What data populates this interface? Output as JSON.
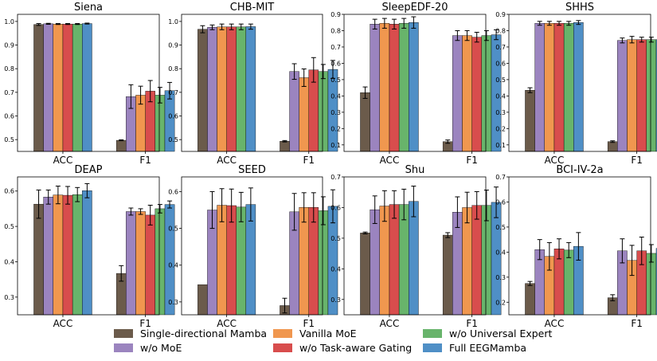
{
  "figure": {
    "legend": [
      {
        "name": "Single-directional Mamba",
        "color": "#6b5b4b"
      },
      {
        "name": "w/o MoE",
        "color": "#9b84bf"
      },
      {
        "name": "Vanilla MoE",
        "color": "#f0974f"
      },
      {
        "name": "w/o Task-aware Gating",
        "color": "#d84d4d"
      },
      {
        "name": "w/o Universal Expert",
        "color": "#68b46b"
      },
      {
        "name": "Full EEGMamba",
        "color": "#4f8fc6"
      }
    ]
  },
  "chart_data": [
    {
      "type": "bar",
      "title": "Siena",
      "categories": [
        "ACC",
        "F1"
      ],
      "ylim": [
        0.45,
        1.03
      ],
      "yticks": [
        "0.5",
        "0.6",
        "0.7",
        "0.8",
        "0.9",
        "1.0"
      ],
      "series": [
        {
          "name": "Single-directional Mamba",
          "values": [
            0.987,
            0.497
          ],
          "errors": [
            0.004,
            0.002
          ]
        },
        {
          "name": "w/o MoE",
          "values": [
            0.99,
            0.682
          ],
          "errors": [
            0.002,
            0.05
          ]
        },
        {
          "name": "Vanilla MoE",
          "values": [
            0.989,
            0.688
          ],
          "errors": [
            0.002,
            0.038
          ]
        },
        {
          "name": "w/o Task-aware Gating",
          "values": [
            0.989,
            0.705
          ],
          "errors": [
            0.002,
            0.045
          ]
        },
        {
          "name": "w/o Universal Expert",
          "values": [
            0.989,
            0.688
          ],
          "errors": [
            0.002,
            0.033
          ]
        },
        {
          "name": "Full EEGMamba",
          "values": [
            0.991,
            0.707
          ],
          "errors": [
            0.002,
            0.035
          ]
        }
      ]
    },
    {
      "type": "bar",
      "title": "CHB-MIT",
      "categories": [
        "ACC",
        "F1"
      ],
      "ylim": [
        0.45,
        1.03
      ],
      "yticks": [
        "0.5",
        "0.6",
        "0.7",
        "0.8",
        "0.9",
        "1.0"
      ],
      "series": [
        {
          "name": "Single-directional Mamba",
          "values": [
            0.967,
            0.493
          ],
          "errors": [
            0.015,
            0.003
          ]
        },
        {
          "name": "w/o MoE",
          "values": [
            0.975,
            0.788
          ],
          "errors": [
            0.01,
            0.033
          ]
        },
        {
          "name": "Vanilla MoE",
          "values": [
            0.977,
            0.762
          ],
          "errors": [
            0.012,
            0.037
          ]
        },
        {
          "name": "w/o Task-aware Gating",
          "values": [
            0.977,
            0.795
          ],
          "errors": [
            0.012,
            0.052
          ]
        },
        {
          "name": "w/o Universal Expert",
          "values": [
            0.977,
            0.788
          ],
          "errors": [
            0.012,
            0.03
          ]
        },
        {
          "name": "Full EEGMamba",
          "values": [
            0.978,
            0.797
          ],
          "errors": [
            0.011,
            0.038
          ]
        }
      ]
    },
    {
      "type": "bar",
      "title": "SleepEDF-20",
      "categories": [
        "ACC",
        "F1"
      ],
      "ylim": [
        0.06,
        0.9
      ],
      "yticks": [
        "0.1",
        "0.2",
        "0.3",
        "0.4",
        "0.5",
        "0.6",
        "0.7",
        "0.8",
        "0.9"
      ],
      "series": [
        {
          "name": "Single-directional Mamba",
          "values": [
            0.42,
            0.12
          ],
          "errors": [
            0.035,
            0.01
          ]
        },
        {
          "name": "w/o MoE",
          "values": [
            0.84,
            0.77
          ],
          "errors": [
            0.03,
            0.03
          ]
        },
        {
          "name": "Vanilla MoE",
          "values": [
            0.845,
            0.77
          ],
          "errors": [
            0.03,
            0.03
          ]
        },
        {
          "name": "w/o Task-aware Gating",
          "values": [
            0.84,
            0.76
          ],
          "errors": [
            0.03,
            0.03
          ]
        },
        {
          "name": "w/o Universal Expert",
          "values": [
            0.845,
            0.77
          ],
          "errors": [
            0.03,
            0.03
          ]
        },
        {
          "name": "Full EEGMamba",
          "values": [
            0.85,
            0.775
          ],
          "errors": [
            0.035,
            0.03
          ]
        }
      ]
    },
    {
      "type": "bar",
      "title": "SHHS",
      "categories": [
        "ACC",
        "F1"
      ],
      "ylim": [
        0.06,
        0.9
      ],
      "yticks": [
        "0.1",
        "0.2",
        "0.3",
        "0.4",
        "0.5",
        "0.6",
        "0.7",
        "0.8",
        "0.9"
      ],
      "series": [
        {
          "name": "Single-directional Mamba",
          "values": [
            0.435,
            0.12
          ],
          "errors": [
            0.015,
            0.005
          ]
        },
        {
          "name": "w/o MoE",
          "values": [
            0.845,
            0.74
          ],
          "errors": [
            0.012,
            0.015
          ]
        },
        {
          "name": "Vanilla MoE",
          "values": [
            0.845,
            0.745
          ],
          "errors": [
            0.012,
            0.02
          ]
        },
        {
          "name": "w/o Task-aware Gating",
          "values": [
            0.845,
            0.745
          ],
          "errors": [
            0.012,
            0.015
          ]
        },
        {
          "name": "w/o Universal Expert",
          "values": [
            0.845,
            0.745
          ],
          "errors": [
            0.012,
            0.015
          ]
        },
        {
          "name": "Full EEGMamba",
          "values": [
            0.85,
            0.745
          ],
          "errors": [
            0.012,
            0.018
          ]
        }
      ]
    },
    {
      "type": "bar",
      "title": "DEAP",
      "categories": [
        "ACC",
        "F1"
      ],
      "ylim": [
        0.25,
        0.64
      ],
      "yticks": [
        "0.3",
        "0.4",
        "0.5",
        "0.6"
      ],
      "series": [
        {
          "name": "Single-directional Mamba",
          "values": [
            0.563,
            0.367
          ],
          "errors": [
            0.04,
            0.022
          ]
        },
        {
          "name": "w/o MoE",
          "values": [
            0.583,
            0.542
          ],
          "errors": [
            0.02,
            0.01
          ]
        },
        {
          "name": "Vanilla MoE",
          "values": [
            0.589,
            0.542
          ],
          "errors": [
            0.025,
            0.008
          ]
        },
        {
          "name": "w/o Task-aware Gating",
          "values": [
            0.588,
            0.532
          ],
          "errors": [
            0.025,
            0.028
          ]
        },
        {
          "name": "w/o Universal Expert",
          "values": [
            0.59,
            0.55
          ],
          "errors": [
            0.02,
            0.012
          ]
        },
        {
          "name": "Full EEGMamba",
          "values": [
            0.601,
            0.562
          ],
          "errors": [
            0.02,
            0.01
          ]
        }
      ]
    },
    {
      "type": "bar",
      "title": "SEED",
      "categories": [
        "ACC",
        "F1"
      ],
      "ylim": [
        0.265,
        0.64
      ],
      "yticks": [
        "0.3",
        "0.4",
        "0.5",
        "0.6"
      ],
      "series": [
        {
          "name": "Single-directional Mamba",
          "values": [
            0.347,
            0.29
          ],
          "errors": [
            0.0,
            0.02
          ]
        },
        {
          "name": "w/o MoE",
          "values": [
            0.55,
            0.545
          ],
          "errors": [
            0.05,
            0.05
          ]
        },
        {
          "name": "Vanilla MoE",
          "values": [
            0.563,
            0.557
          ],
          "errors": [
            0.045,
            0.04
          ]
        },
        {
          "name": "w/o Task-aware Gating",
          "values": [
            0.562,
            0.557
          ],
          "errors": [
            0.045,
            0.04
          ]
        },
        {
          "name": "w/o Universal Expert",
          "values": [
            0.558,
            0.548
          ],
          "errors": [
            0.04,
            0.038
          ]
        },
        {
          "name": "Full EEGMamba",
          "values": [
            0.565,
            0.56
          ],
          "errors": [
            0.045,
            0.045
          ]
        }
      ]
    },
    {
      "type": "bar",
      "title": "Shu",
      "categories": [
        "ACC",
        "F1"
      ],
      "ylim": [
        0.25,
        0.7
      ],
      "yticks": [
        "0.3",
        "0.4",
        "0.5",
        "0.6",
        "0.7"
      ],
      "series": [
        {
          "name": "Single-directional Mamba",
          "values": [
            0.517,
            0.51
          ],
          "errors": [
            0.003,
            0.008
          ]
        },
        {
          "name": "w/o MoE",
          "values": [
            0.593,
            0.585
          ],
          "errors": [
            0.045,
            0.05
          ]
        },
        {
          "name": "Vanilla MoE",
          "values": [
            0.605,
            0.6
          ],
          "errors": [
            0.05,
            0.05
          ]
        },
        {
          "name": "w/o Task-aware Gating",
          "values": [
            0.61,
            0.607
          ],
          "errors": [
            0.045,
            0.045
          ]
        },
        {
          "name": "w/o Universal Expert",
          "values": [
            0.61,
            0.607
          ],
          "errors": [
            0.05,
            0.05
          ]
        },
        {
          "name": "Full EEGMamba",
          "values": [
            0.62,
            0.617
          ],
          "errors": [
            0.05,
            0.05
          ]
        }
      ]
    },
    {
      "type": "bar",
      "title": "BCI-IV-2a",
      "categories": [
        "ACC",
        "F1"
      ],
      "ylim": [
        0.15,
        0.7
      ],
      "yticks": [
        "0.2",
        "0.3",
        "0.4",
        "0.5",
        "0.6",
        "0.7"
      ],
      "series": [
        {
          "name": "Single-directional Mamba",
          "values": [
            0.275,
            0.218
          ],
          "errors": [
            0.008,
            0.012
          ]
        },
        {
          "name": "w/o MoE",
          "values": [
            0.41,
            0.405
          ],
          "errors": [
            0.04,
            0.048
          ]
        },
        {
          "name": "Vanilla MoE",
          "values": [
            0.383,
            0.367
          ],
          "errors": [
            0.055,
            0.06
          ]
        },
        {
          "name": "w/o Task-aware Gating",
          "values": [
            0.413,
            0.405
          ],
          "errors": [
            0.04,
            0.055
          ]
        },
        {
          "name": "w/o Universal Expert",
          "values": [
            0.408,
            0.395
          ],
          "errors": [
            0.03,
            0.035
          ]
        },
        {
          "name": "Full EEGMamba",
          "values": [
            0.423,
            0.415
          ],
          "errors": [
            0.055,
            0.06
          ]
        }
      ]
    }
  ]
}
